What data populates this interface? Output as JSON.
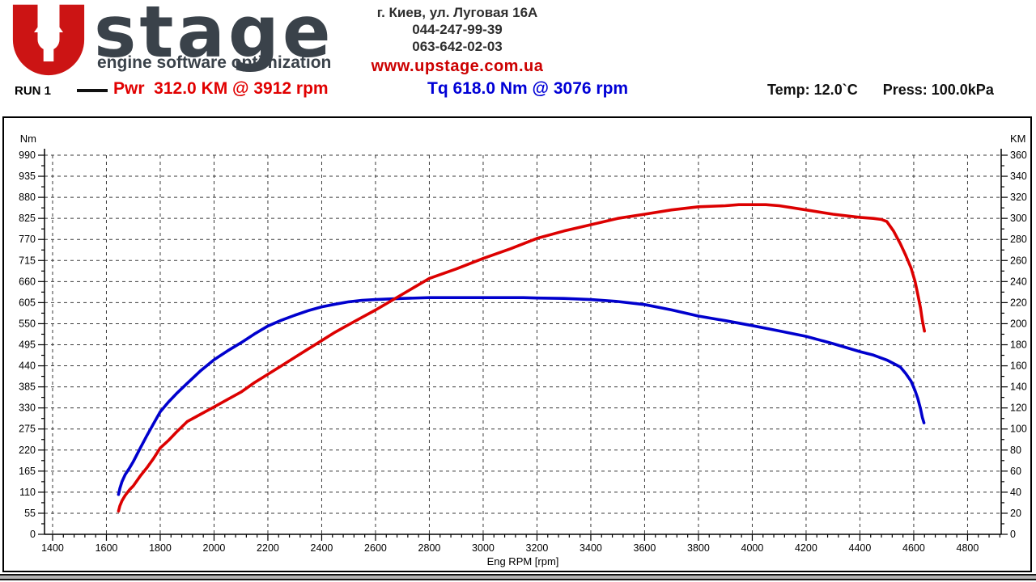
{
  "header": {
    "logo": {
      "brand": "stage",
      "tagline": "engine software optimization"
    },
    "address_line": "г. Киев, ул. Луговая 16А",
    "phone1": "044-247-99-39",
    "phone2": "063-642-02-03",
    "website": "www.upstage.com.ua"
  },
  "run_bar": {
    "run_label": "RUN 1",
    "power_reading": "Pwr  312.0 KM @ 3912 rpm",
    "torque_reading": "Tq 618.0 Nm @ 3076 rpm",
    "temp_reading": "Temp: 12.0`C",
    "press_reading": "Press: 100.0kPa"
  },
  "colors": {
    "power_curve": "#dc0000",
    "torque_curve": "#0000cd",
    "logo_red": "#cc1414",
    "logo_dark": "#3a424a",
    "grid": "#3a3a3a",
    "axis": "#000000"
  },
  "chart_data": {
    "type": "line",
    "x_axis": {
      "label": "Eng RPM [rpm]",
      "min": 1370,
      "max": 4925,
      "tick_start": 1400,
      "tick_end": 4800,
      "major_step": 200,
      "minor_step": 40,
      "grid": true
    },
    "y_left": {
      "label": "Nm",
      "min": 0,
      "max": 990,
      "major_step": 55,
      "minor_step": 27.5,
      "grid": true
    },
    "y_right": {
      "label": "KM",
      "min": 0,
      "max": 360,
      "major_step": 20,
      "minor_step": 10
    },
    "peaks": {
      "power": "312.0 KM @ 3912 rpm",
      "torque": "618.0 Nm @ 3076 rpm"
    },
    "series": [
      {
        "name": "Torque",
        "unit": "Nm",
        "axis": "left",
        "color": "#0000cd",
        "points": [
          [
            1645,
            104
          ],
          [
            1650,
            120
          ],
          [
            1658,
            138
          ],
          [
            1670,
            156
          ],
          [
            1685,
            172
          ],
          [
            1700,
            190
          ],
          [
            1725,
            224
          ],
          [
            1750,
            257
          ],
          [
            1775,
            289
          ],
          [
            1800,
            320
          ],
          [
            1830,
            345
          ],
          [
            1860,
            367
          ],
          [
            1900,
            394
          ],
          [
            1950,
            427
          ],
          [
            2000,
            456
          ],
          [
            2050,
            479
          ],
          [
            2100,
            500
          ],
          [
            2150,
            523
          ],
          [
            2200,
            544
          ],
          [
            2250,
            559
          ],
          [
            2300,
            572
          ],
          [
            2350,
            584
          ],
          [
            2400,
            594
          ],
          [
            2450,
            601
          ],
          [
            2500,
            607
          ],
          [
            2550,
            611
          ],
          [
            2600,
            613
          ],
          [
            2700,
            616
          ],
          [
            2800,
            618
          ],
          [
            2900,
            618
          ],
          [
            3000,
            618
          ],
          [
            3076,
            618
          ],
          [
            3150,
            618
          ],
          [
            3200,
            617
          ],
          [
            3300,
            616
          ],
          [
            3400,
            613
          ],
          [
            3500,
            608
          ],
          [
            3600,
            600
          ],
          [
            3700,
            586
          ],
          [
            3800,
            570
          ],
          [
            3900,
            558
          ],
          [
            4000,
            545
          ],
          [
            4100,
            531
          ],
          [
            4200,
            517
          ],
          [
            4300,
            498
          ],
          [
            4400,
            477
          ],
          [
            4450,
            468
          ],
          [
            4500,
            455
          ],
          [
            4550,
            437
          ],
          [
            4570,
            420
          ],
          [
            4590,
            400
          ],
          [
            4605,
            375
          ],
          [
            4615,
            355
          ],
          [
            4625,
            328
          ],
          [
            4632,
            305
          ],
          [
            4638,
            291
          ]
        ]
      },
      {
        "name": "Power",
        "unit": "KM",
        "axis": "right",
        "color": "#dc0000",
        "points": [
          [
            1645,
            22
          ],
          [
            1650,
            27
          ],
          [
            1658,
            32
          ],
          [
            1670,
            37
          ],
          [
            1685,
            42
          ],
          [
            1700,
            46
          ],
          [
            1725,
            55
          ],
          [
            1750,
            63
          ],
          [
            1775,
            72
          ],
          [
            1800,
            82
          ],
          [
            1830,
            89
          ],
          [
            1860,
            97
          ],
          [
            1900,
            107
          ],
          [
            1950,
            114
          ],
          [
            2000,
            121
          ],
          [
            2050,
            128
          ],
          [
            2100,
            135
          ],
          [
            2150,
            144
          ],
          [
            2200,
            152
          ],
          [
            2250,
            160
          ],
          [
            2300,
            168
          ],
          [
            2350,
            176
          ],
          [
            2400,
            184
          ],
          [
            2450,
            192
          ],
          [
            2500,
            199
          ],
          [
            2550,
            206
          ],
          [
            2600,
            213
          ],
          [
            2700,
            228
          ],
          [
            2800,
            243
          ],
          [
            2900,
            252
          ],
          [
            3000,
            262
          ],
          [
            3100,
            271
          ],
          [
            3200,
            281
          ],
          [
            3300,
            288
          ],
          [
            3400,
            294
          ],
          [
            3500,
            300
          ],
          [
            3600,
            304
          ],
          [
            3700,
            308
          ],
          [
            3800,
            311
          ],
          [
            3900,
            312
          ],
          [
            3950,
            313
          ],
          [
            4000,
            313
          ],
          [
            4050,
            313
          ],
          [
            4100,
            312
          ],
          [
            4200,
            308
          ],
          [
            4300,
            304
          ],
          [
            4400,
            301
          ],
          [
            4450,
            300
          ],
          [
            4480,
            299
          ],
          [
            4500,
            297
          ],
          [
            4525,
            288
          ],
          [
            4550,
            276
          ],
          [
            4570,
            265
          ],
          [
            4590,
            253
          ],
          [
            4605,
            240
          ],
          [
            4615,
            228
          ],
          [
            4625,
            215
          ],
          [
            4632,
            203
          ],
          [
            4640,
            193
          ]
        ]
      }
    ]
  }
}
